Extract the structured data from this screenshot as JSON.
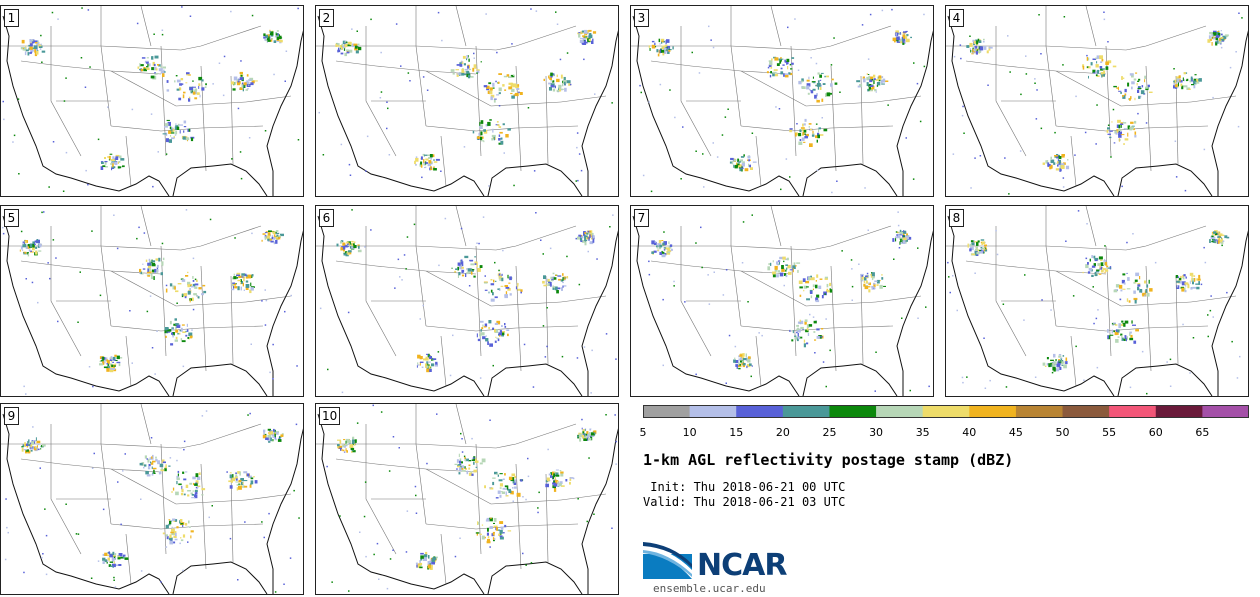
{
  "panels": [
    {
      "number": "1"
    },
    {
      "number": "2"
    },
    {
      "number": "3"
    },
    {
      "number": "4"
    },
    {
      "number": "5"
    },
    {
      "number": "6"
    },
    {
      "number": "7"
    },
    {
      "number": "8"
    },
    {
      "number": "9"
    },
    {
      "number": "10"
    }
  ],
  "colorbar": {
    "colors": [
      "#a0a0a0",
      "#b4bfe8",
      "#5861d8",
      "#4a9898",
      "#0c880c",
      "#b7d7b7",
      "#eedc6a",
      "#f0b31f",
      "#b88433",
      "#8b5a3c",
      "#f25678",
      "#6a1a3a",
      "#a450a8"
    ],
    "labels": [
      "5",
      "10",
      "15",
      "20",
      "25",
      "30",
      "35",
      "40",
      "45",
      "50",
      "55",
      "60",
      "65"
    ]
  },
  "title": "1-km AGL reflectivity postage stamp (dBZ)",
  "init_text": " Init: Thu 2018-06-21 00 UTC",
  "valid_text": "Valid: Thu 2018-06-21 03 UTC",
  "logo_text": "NCAR",
  "url": "ensemble.ucar.edu"
}
